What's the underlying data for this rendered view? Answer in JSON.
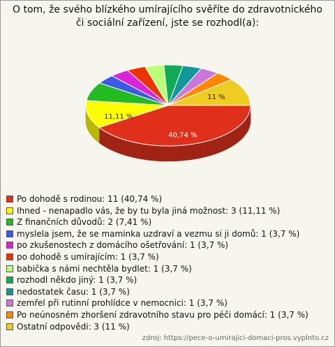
{
  "chart_data": {
    "type": "pie",
    "title": "O tom, že svého blízkého umírajícího svěříte do zdravotnického či sociální zařízení, jste se rozhodl(a):",
    "categories": [
      "Po dohodě s rodinou: 11 (40,74 %)",
      "Ihned - nenapadlo vás, že by tu byla jiná možnost: 3 (11,11 %)",
      "Z finančních důvodů: 2 (7,41 %)",
      "myslela jsem, že se maminka uzdraví a vezmu si ji domů: 1 (3,7 %)",
      "po zkušenostech z domácího ošetřování: 1 (3,7 %)",
      "po dohodě s umírajícím: 1 (3,7 %)",
      "babička s námi nechtěla bydlet: 1 (3,7 %)",
      "rozhodl někdo jiný: 1 (3,7 %)",
      "nedostatek času: 1 (3,7 %)",
      "zemřel při rutinní prohlídce v nemocnici: 1 (3,7 %)",
      "Po neúnosném zhoršení zdravotního stavu pro péči domácí: 1 (3,7 %)",
      "Ostatní odpovědi: 3 (11 %)"
    ],
    "values": [
      40.74,
      11.11,
      7.41,
      3.7,
      3.7,
      3.7,
      3.7,
      3.7,
      3.7,
      3.7,
      3.7,
      11
    ],
    "value_labels": [
      "40,74 %",
      "11,11 %",
      null,
      null,
      null,
      null,
      null,
      null,
      null,
      null,
      null,
      "11 %"
    ],
    "colors": [
      "#e0301c",
      "#ffff00",
      "#22bb22",
      "#3a5ae8",
      "#dd22dd",
      "#ee3300",
      "#bbff77",
      "#11aa55",
      "#119999",
      "#cc77dd",
      "#ff8800",
      "#eecc22"
    ],
    "source": "zdroj: https://pece-o-umirajici-domaci-pros.vyplnto.cz"
  }
}
